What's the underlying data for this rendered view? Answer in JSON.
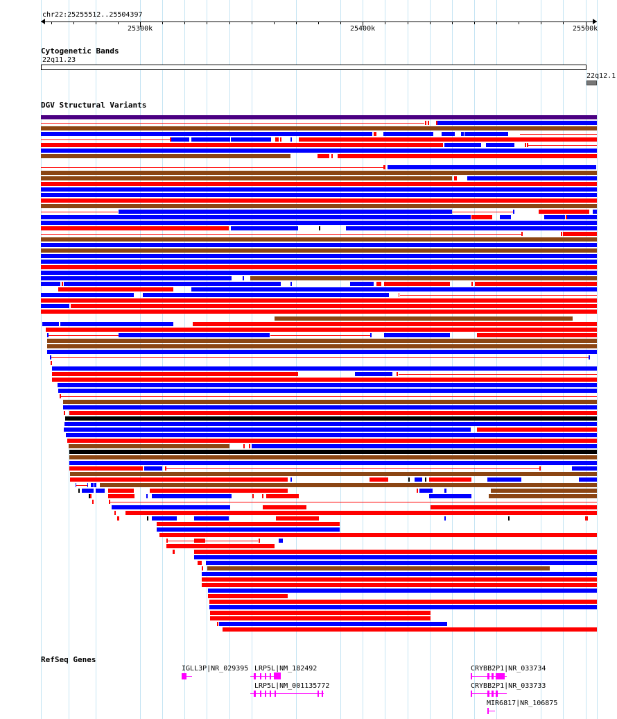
{
  "browser": {
    "position": "chr22:25255512..25504397",
    "ruler": {
      "ticks": [
        {
          "label": "25300k",
          "value": 25300000
        },
        {
          "label": "25400k",
          "value": 25400000
        },
        {
          "label": "25500k",
          "value": 25500000
        }
      ]
    },
    "tracks": {
      "cytoband": {
        "title": "Cytogenetic Bands",
        "band_current": "22q11.23",
        "band_next": "22q12.1"
      },
      "dgv": {
        "title": "DGV Structural Variants",
        "colors": {
          "gain": "#ff0000",
          "loss": "#0000ff",
          "gain_loss": "#8b4513",
          "complex": "#000000",
          "inversion": "#4b0082"
        }
      },
      "refseq": {
        "title": "RefSeq Genes",
        "color": "#ff00ff",
        "genes": [
          {
            "label": "IGLL3P|NR_029395"
          },
          {
            "label": "LRP5L|NM_182492"
          },
          {
            "label": "LRP5L|NM_001135772"
          },
          {
            "label": "CRYBB2P1|NR_033734"
          },
          {
            "label": "CRYBB2P1|NR_033733"
          },
          {
            "label": "MIR6817|NR_106875"
          }
        ]
      }
    }
  }
}
